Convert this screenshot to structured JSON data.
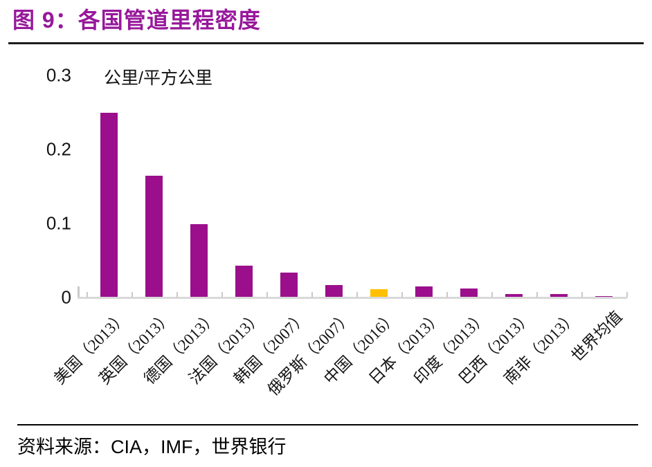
{
  "header": {
    "title": "图 9：各国管道里程密度"
  },
  "chart_data": {
    "type": "bar",
    "title": "图 9：各国管道里程密度",
    "unit_label": "公里/平方公里",
    "categories": [
      "美国（2013）",
      "英国（2013）",
      "德国（2013）",
      "法国（2013）",
      "韩国（2007）",
      "俄罗斯（2007）",
      "中国（2016）",
      "日本（2013）",
      "印度（2013）",
      "巴西（2013）",
      "南非（2013）",
      "世界均值"
    ],
    "values": [
      0.25,
      0.165,
      0.1,
      0.043,
      0.034,
      0.017,
      0.012,
      0.015,
      0.013,
      0.005,
      0.005,
      0.002
    ],
    "xlabel": "",
    "ylabel": "公里/平方公里",
    "ylim": [
      0,
      0.3
    ],
    "yticks": [
      0,
      0.1,
      0.2,
      0.3
    ],
    "ytick_labels": [
      "0",
      "0.1",
      "0.2",
      "0.3"
    ],
    "bar_color": "#9B0F8C",
    "highlight_color": "#FFC000",
    "highlight_index": 6,
    "highlight_category": "中国（2016）",
    "grid": false,
    "legend": "none",
    "axis_color": "#D9D9D9"
  },
  "footer": {
    "source": "资料来源：CIA，IMF，世界银行"
  }
}
